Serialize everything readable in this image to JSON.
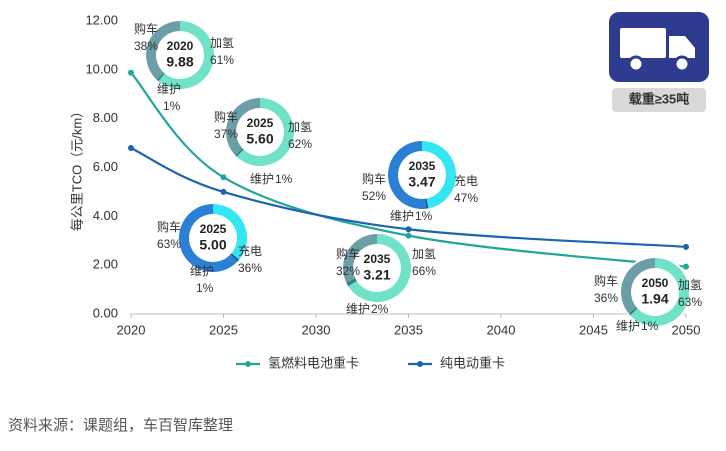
{
  "chart_data": {
    "type": "line",
    "y_label": "每公里TCO（元/km）",
    "xlim": [
      2020,
      2050
    ],
    "xticks": [
      2020,
      2025,
      2030,
      2035,
      2040,
      2045,
      2050
    ],
    "ylim": [
      0,
      12
    ],
    "yticks": [
      {
        "value": 0,
        "label": "0.00"
      },
      {
        "value": 2,
        "label": "2.00"
      },
      {
        "value": 4,
        "label": "4.00"
      },
      {
        "value": 6,
        "label": "6.00"
      },
      {
        "value": 8,
        "label": "8.00"
      },
      {
        "value": 10,
        "label": "10.00"
      },
      {
        "value": 12,
        "label": "12.00"
      }
    ],
    "series": [
      {
        "name": "氢燃料电池重卡",
        "color": "#22a59b",
        "x": [
          2020,
          2025,
          2035,
          2050
        ],
        "values": [
          9.88,
          5.6,
          3.21,
          1.94
        ]
      },
      {
        "name": "纯电动重卡",
        "color": "#1c64b2",
        "x": [
          2020,
          2025,
          2035,
          2050
        ],
        "values": [
          6.8,
          5.0,
          3.47,
          2.75
        ]
      }
    ],
    "donuts": [
      {
        "year": 2020,
        "tco": {
          "value": 9.88,
          "label": "9.88"
        },
        "colors": [
          "#6c9ea7",
          "#6fe2c8",
          "#2f7f86"
        ],
        "segments": [
          {
            "name": "购车",
            "value": 38,
            "label": "38%"
          },
          {
            "name": "加氢",
            "value": 61,
            "label": "61%"
          },
          {
            "name": "维护",
            "value": 1,
            "label": "1%"
          }
        ]
      },
      {
        "year": 2025,
        "tco": {
          "value": 5.6,
          "label": "5.60"
        },
        "colors": [
          "#6c9ea7",
          "#6fe2c8",
          "#2f7f86"
        ],
        "segments": [
          {
            "name": "购车",
            "value": 37,
            "label": "37%"
          },
          {
            "name": "加氢",
            "value": 62,
            "label": "62%"
          },
          {
            "name": "维护",
            "value": 1,
            "label": "1%"
          }
        ]
      },
      {
        "year": 2035,
        "tco": {
          "value": 3.47,
          "label": "3.47"
        },
        "colors": [
          "#2b80d6",
          "#33e6f2",
          "#1b4f8f"
        ],
        "segments": [
          {
            "name": "购车",
            "value": 52,
            "label": "52%"
          },
          {
            "name": "充电",
            "value": 47,
            "label": "47%"
          },
          {
            "name": "维护",
            "value": 1,
            "label": "1%"
          }
        ]
      },
      {
        "year": 2025,
        "tco": {
          "value": 5.0,
          "label": "5.00"
        },
        "colors": [
          "#2b80d6",
          "#33e6f2",
          "#1b4f8f"
        ],
        "segments": [
          {
            "name": "购车",
            "value": 63,
            "label": "63%"
          },
          {
            "name": "充电",
            "value": 36,
            "label": "36%"
          },
          {
            "name": "维护",
            "value": 1,
            "label": "1%"
          }
        ]
      },
      {
        "year": 2035,
        "tco": {
          "value": 3.21,
          "label": "3.21"
        },
        "colors": [
          "#6c9ea7",
          "#6fe2c8",
          "#2f7f86"
        ],
        "segments": [
          {
            "name": "购车",
            "value": 32,
            "label": "32%"
          },
          {
            "name": "加氢",
            "value": 66,
            "label": "66%"
          },
          {
            "name": "维护",
            "value": 2,
            "label": "2%"
          }
        ]
      },
      {
        "year": 2050,
        "tco": {
          "value": 1.94,
          "label": "1.94"
        },
        "colors": [
          "#6c9ea7",
          "#6fe2c8",
          "#2f7f86"
        ],
        "segments": [
          {
            "name": "购车",
            "value": 36,
            "label": "36%"
          },
          {
            "name": "加氢",
            "value": 63,
            "label": "63%"
          },
          {
            "name": "维护",
            "value": 1,
            "label": "1%"
          }
        ]
      }
    ]
  },
  "badge": "载重≥35吨",
  "source": "资料来源：课题组，车百智库整理"
}
